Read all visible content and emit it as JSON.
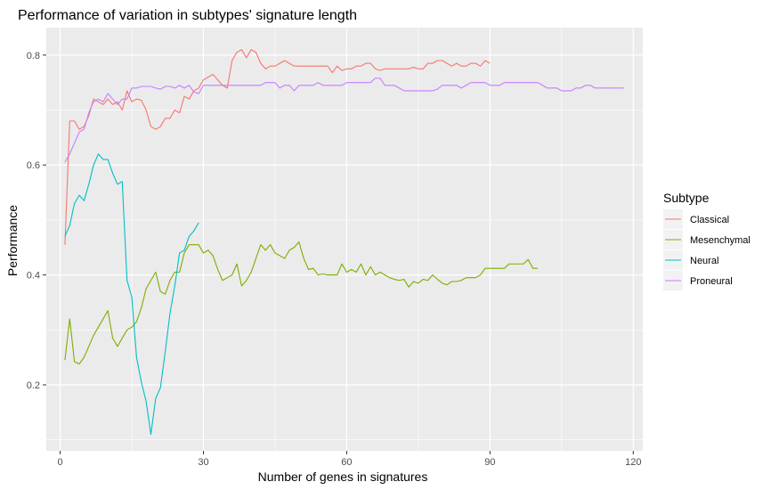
{
  "chart_data": {
    "type": "line",
    "title": "Performance of variation in subtypes' signature length",
    "xlabel": "Number of genes in signatures",
    "ylabel": "Performance",
    "xlim": [
      -2.9,
      122
    ],
    "ylim": [
      0.08,
      0.85
    ],
    "x_ticks": [
      0,
      30,
      60,
      90,
      120
    ],
    "x_minor_ticks": [
      15,
      45,
      75,
      105
    ],
    "y_ticks": [
      0.2,
      0.4,
      0.6,
      0.8
    ],
    "y_minor_ticks": [
      0.1,
      0.3,
      0.5,
      0.7
    ],
    "x_tick_labels": [
      "0",
      "30",
      "60",
      "90",
      "120"
    ],
    "y_tick_labels": [
      "0.2",
      "0.4",
      "0.6",
      "0.8"
    ],
    "grid": true,
    "legend": {
      "title": "Subtype",
      "position": "right"
    },
    "series": [
      {
        "name": "Classical",
        "color": "#F8766D",
        "x": [
          1,
          2,
          3,
          4,
          5,
          6,
          7,
          8,
          9,
          10,
          11,
          12,
          13,
          14,
          15,
          16,
          17,
          18,
          19,
          20,
          21,
          22,
          23,
          24,
          25,
          26,
          27,
          28,
          29,
          30,
          31,
          32,
          33,
          34,
          35,
          36,
          37,
          38,
          39,
          40,
          41,
          42,
          43,
          44,
          45,
          46,
          47,
          48,
          49,
          50,
          51,
          52,
          53,
          54,
          55,
          56,
          57,
          58,
          59,
          60,
          61,
          62,
          63,
          64,
          65,
          66,
          67,
          68,
          69,
          70,
          71,
          72,
          73,
          74,
          75,
          76,
          77,
          78,
          79,
          80,
          81,
          82,
          83,
          84,
          85,
          86,
          87,
          88,
          89,
          90
        ],
        "y": [
          0.455,
          0.68,
          0.68,
          0.665,
          0.67,
          0.69,
          0.72,
          0.715,
          0.71,
          0.72,
          0.71,
          0.715,
          0.7,
          0.735,
          0.715,
          0.72,
          0.718,
          0.7,
          0.67,
          0.665,
          0.67,
          0.685,
          0.685,
          0.7,
          0.695,
          0.725,
          0.72,
          0.735,
          0.74,
          0.755,
          0.76,
          0.765,
          0.755,
          0.745,
          0.74,
          0.79,
          0.805,
          0.81,
          0.795,
          0.81,
          0.805,
          0.785,
          0.775,
          0.78,
          0.78,
          0.785,
          0.79,
          0.785,
          0.78,
          0.78,
          0.78,
          0.78,
          0.78,
          0.78,
          0.78,
          0.78,
          0.768,
          0.78,
          0.772,
          0.775,
          0.775,
          0.78,
          0.78,
          0.785,
          0.785,
          0.775,
          0.772,
          0.775,
          0.775,
          0.775,
          0.775,
          0.775,
          0.775,
          0.778,
          0.775,
          0.775,
          0.785,
          0.785,
          0.79,
          0.79,
          0.785,
          0.78,
          0.785,
          0.78,
          0.78,
          0.785,
          0.785,
          0.78,
          0.79,
          0.785
        ]
      },
      {
        "name": "Mesenchymal",
        "color": "#7CAE00",
        "x": [
          1,
          2,
          3,
          4,
          5,
          6,
          7,
          8,
          9,
          10,
          11,
          12,
          13,
          14,
          15,
          16,
          17,
          18,
          19,
          20,
          21,
          22,
          23,
          24,
          25,
          26,
          27,
          28,
          29,
          30,
          31,
          32,
          33,
          34,
          35,
          36,
          37,
          38,
          39,
          40,
          41,
          42,
          43,
          44,
          45,
          46,
          47,
          48,
          49,
          50,
          51,
          52,
          53,
          54,
          55,
          56,
          57,
          58,
          59,
          60,
          61,
          62,
          63,
          64,
          65,
          66,
          67,
          68,
          69,
          70,
          71,
          72,
          73,
          74,
          75,
          76,
          77,
          78,
          79,
          80,
          81,
          82,
          83,
          84,
          85,
          86,
          87,
          88,
          89,
          90,
          91,
          92,
          93,
          94,
          95,
          96,
          97,
          98,
          99,
          100
        ],
        "y": [
          0.245,
          0.32,
          0.242,
          0.238,
          0.25,
          0.27,
          0.29,
          0.305,
          0.32,
          0.335,
          0.285,
          0.27,
          0.285,
          0.3,
          0.305,
          0.315,
          0.34,
          0.375,
          0.39,
          0.405,
          0.37,
          0.365,
          0.39,
          0.405,
          0.405,
          0.44,
          0.455,
          0.455,
          0.455,
          0.44,
          0.445,
          0.435,
          0.41,
          0.39,
          0.395,
          0.4,
          0.42,
          0.38,
          0.39,
          0.405,
          0.43,
          0.455,
          0.445,
          0.455,
          0.44,
          0.435,
          0.43,
          0.445,
          0.45,
          0.46,
          0.43,
          0.41,
          0.412,
          0.4,
          0.402,
          0.4,
          0.4,
          0.4,
          0.42,
          0.405,
          0.41,
          0.405,
          0.42,
          0.4,
          0.415,
          0.4,
          0.405,
          0.4,
          0.395,
          0.392,
          0.39,
          0.392,
          0.378,
          0.388,
          0.385,
          0.392,
          0.39,
          0.4,
          0.392,
          0.385,
          0.382,
          0.388,
          0.388,
          0.39,
          0.395,
          0.395,
          0.395,
          0.4,
          0.412,
          0.412,
          0.412,
          0.412,
          0.412,
          0.42,
          0.42,
          0.42,
          0.42,
          0.428,
          0.412,
          0.412
        ]
      },
      {
        "name": "Neural",
        "color": "#00BFC4",
        "x": [
          1,
          2,
          3,
          4,
          5,
          6,
          7,
          8,
          9,
          10,
          11,
          12,
          13,
          14,
          15,
          16,
          17,
          18,
          19,
          20,
          21,
          22,
          23,
          24,
          25,
          26,
          27,
          28,
          29
        ],
        "y": [
          0.47,
          0.49,
          0.53,
          0.545,
          0.535,
          0.565,
          0.6,
          0.62,
          0.61,
          0.61,
          0.585,
          0.565,
          0.57,
          0.39,
          0.36,
          0.25,
          0.205,
          0.17,
          0.11,
          0.175,
          0.195,
          0.26,
          0.33,
          0.38,
          0.44,
          0.445,
          0.47,
          0.48,
          0.495
        ]
      },
      {
        "name": "Proneural",
        "color": "#C77CFF",
        "x": [
          1,
          2,
          3,
          4,
          5,
          6,
          7,
          8,
          9,
          10,
          11,
          12,
          13,
          14,
          15,
          16,
          17,
          18,
          19,
          20,
          21,
          22,
          23,
          24,
          25,
          26,
          27,
          28,
          29,
          30,
          31,
          32,
          33,
          34,
          35,
          36,
          37,
          38,
          39,
          40,
          41,
          42,
          43,
          44,
          45,
          46,
          47,
          48,
          49,
          50,
          51,
          52,
          53,
          54,
          55,
          56,
          57,
          58,
          59,
          60,
          61,
          62,
          63,
          64,
          65,
          66,
          67,
          68,
          69,
          70,
          71,
          72,
          73,
          74,
          75,
          76,
          77,
          78,
          79,
          80,
          81,
          82,
          83,
          84,
          85,
          86,
          87,
          88,
          89,
          90,
          91,
          92,
          93,
          94,
          95,
          96,
          97,
          98,
          99,
          100,
          101,
          102,
          103,
          104,
          105,
          106,
          107,
          108,
          109,
          110,
          111,
          112,
          113,
          114,
          115,
          116,
          117,
          118
        ],
        "y": [
          0.605,
          0.62,
          0.64,
          0.66,
          0.665,
          0.695,
          0.715,
          0.72,
          0.715,
          0.73,
          0.72,
          0.71,
          0.72,
          0.72,
          0.74,
          0.74,
          0.743,
          0.743,
          0.743,
          0.74,
          0.738,
          0.743,
          0.743,
          0.74,
          0.745,
          0.74,
          0.745,
          0.733,
          0.73,
          0.745,
          0.745,
          0.745,
          0.745,
          0.745,
          0.745,
          0.745,
          0.745,
          0.745,
          0.745,
          0.745,
          0.745,
          0.745,
          0.75,
          0.75,
          0.75,
          0.74,
          0.745,
          0.745,
          0.735,
          0.745,
          0.745,
          0.745,
          0.745,
          0.75,
          0.745,
          0.745,
          0.745,
          0.745,
          0.745,
          0.75,
          0.75,
          0.75,
          0.75,
          0.75,
          0.75,
          0.758,
          0.758,
          0.745,
          0.745,
          0.745,
          0.74,
          0.735,
          0.735,
          0.735,
          0.735,
          0.735,
          0.735,
          0.735,
          0.738,
          0.745,
          0.745,
          0.745,
          0.745,
          0.74,
          0.745,
          0.75,
          0.75,
          0.75,
          0.75,
          0.745,
          0.745,
          0.745,
          0.75,
          0.75,
          0.75,
          0.75,
          0.75,
          0.75,
          0.75,
          0.75,
          0.745,
          0.74,
          0.74,
          0.74,
          0.735,
          0.735,
          0.735,
          0.74,
          0.74,
          0.745,
          0.745,
          0.74,
          0.74,
          0.74,
          0.74,
          0.74,
          0.74,
          0.74
        ]
      }
    ]
  }
}
